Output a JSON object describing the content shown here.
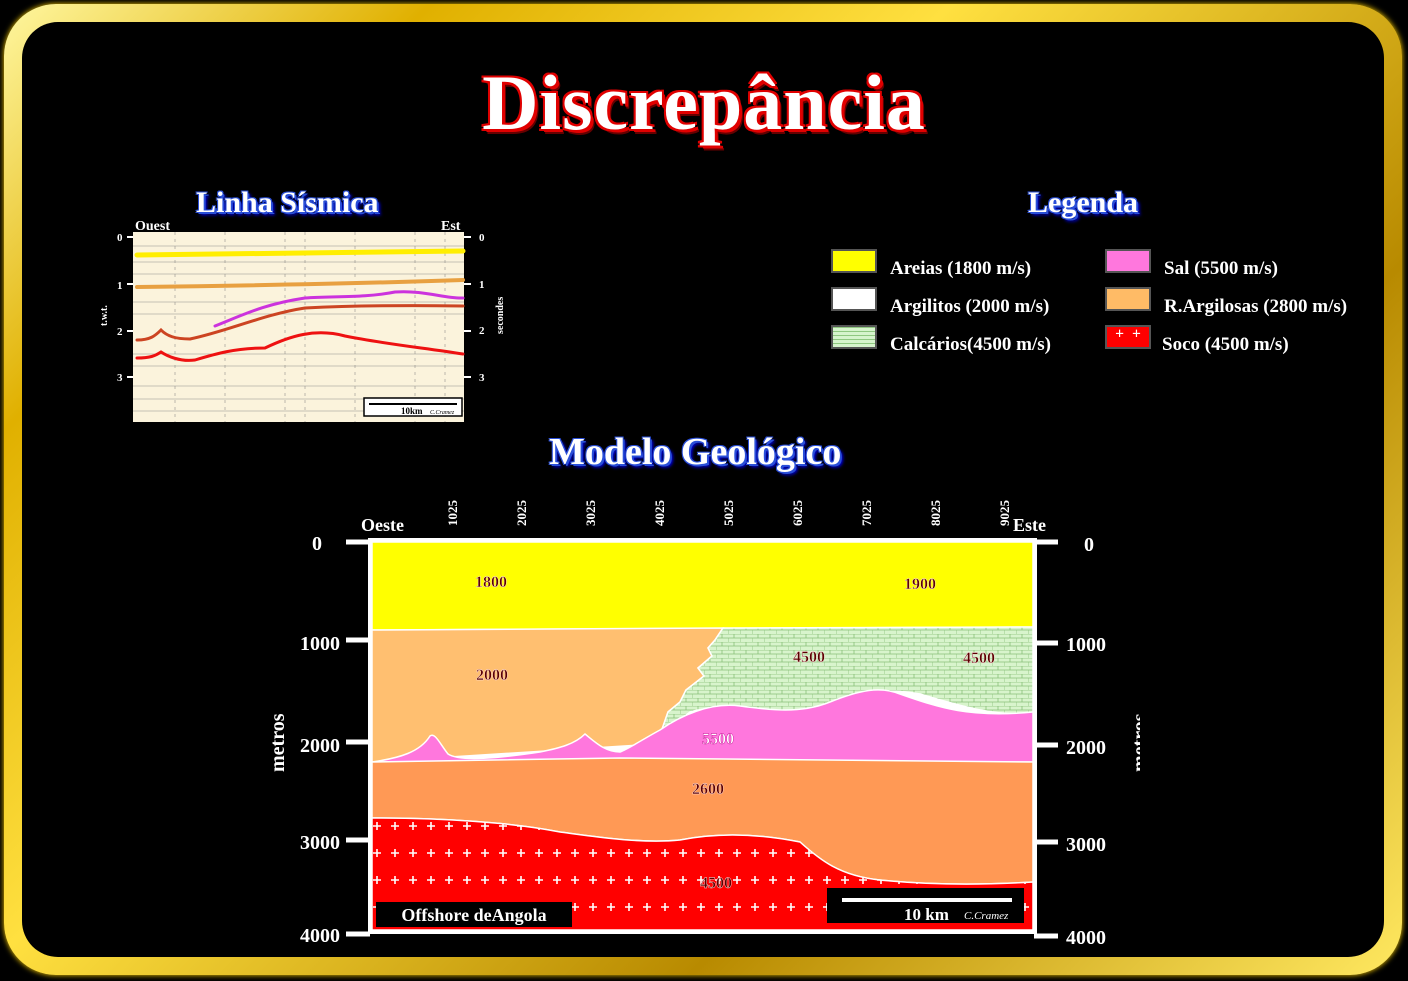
{
  "title": "Discrepância",
  "seismic": {
    "title": "Linha Sísmica",
    "west": "Ouest",
    "east": "Est",
    "left_axis_label": "t.w.t.",
    "right_axis_label": "secondes",
    "ticks": [
      "0",
      "1",
      "2",
      "3"
    ],
    "scale": "10km",
    "credit": "C.Cramez"
  },
  "legend": {
    "title": "Legenda",
    "items": [
      {
        "label": "Areias (1800 m/s)",
        "color": "#ffff00"
      },
      {
        "label": "Argilitos (2000 m/s)",
        "color": "#ffffff"
      },
      {
        "label": "Calcários(4500 m/s)",
        "color": "#c8f0c0"
      },
      {
        "label": "Sal (5500 m/s)",
        "color": "#ff77dd"
      },
      {
        "label": "R.Argilosas (2800 m/s)",
        "color": "#ffbb66"
      },
      {
        "label": "Soco (4500 m/s)",
        "color": "#ff0000"
      }
    ]
  },
  "model": {
    "title": "Modelo Geológico",
    "west": "Oeste",
    "east": "Este",
    "axis_label": "metros",
    "x_ticks": [
      "1025",
      "2025",
      "3025",
      "4025",
      "5025",
      "6025",
      "7025",
      "8025",
      "9025"
    ],
    "depth_ticks": [
      "0",
      "1000",
      "2000",
      "3000",
      "4000"
    ],
    "layer_labels": [
      "1800",
      "1900",
      "2000",
      "4500",
      "4500",
      "5500",
      "2600",
      "4500"
    ],
    "location": "Offshore deAngola",
    "scale": "10 km",
    "credit": "C.Cramez"
  }
}
